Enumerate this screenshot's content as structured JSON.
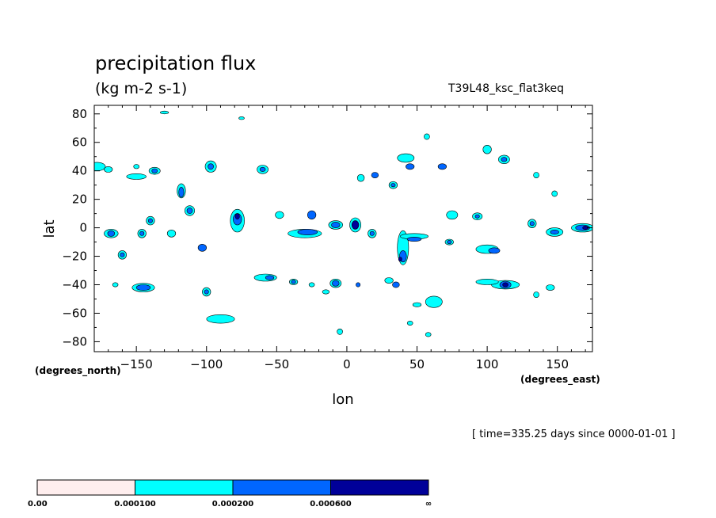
{
  "chart_data": {
    "type": "heatmap",
    "title": "precipitation flux",
    "units": "(kg m-2 s-1)",
    "run_name": "T39L48_ksc_flat3keq",
    "xlabel": "lon",
    "ylabel": "lat",
    "x_units": "(degrees_east)",
    "y_units": "(degrees_north)",
    "xlim": [
      -180,
      175
    ],
    "ylim": [
      -87,
      86
    ],
    "x_ticks": [
      -150,
      -100,
      -50,
      0,
      50,
      100,
      150
    ],
    "y_ticks": [
      80,
      60,
      40,
      20,
      0,
      -20,
      -40,
      -60,
      -80
    ],
    "x_tick_labels": [
      "−150",
      "−100",
      "−50",
      "0",
      "50",
      "100",
      "150"
    ],
    "y_tick_labels": [
      "80",
      "60",
      "40",
      "20",
      "0",
      "−20",
      "−40",
      "−60",
      "−80"
    ],
    "levels": [
      {
        "label": "0.00",
        "color": "#ffeeee"
      },
      {
        "label": "0.000100",
        "color": "#00ffff"
      },
      {
        "label": "0.000200",
        "color": "#0066ff"
      },
      {
        "label": "0.000600",
        "color": "#000099"
      },
      {
        "label": "∞"
      }
    ],
    "time_label": "[ time=335.25 days since 0000-01-01 ]",
    "blobs": [
      {
        "lon": -178,
        "lat": 43,
        "rx": 6,
        "ry": 3,
        "level": 1
      },
      {
        "lon": -170,
        "lat": 41,
        "rx": 3,
        "ry": 2,
        "level": 1
      },
      {
        "lon": -150,
        "lat": 36,
        "rx": 7,
        "ry": 2,
        "level": 1
      },
      {
        "lon": -137,
        "lat": 40,
        "rx": 4,
        "ry": 2.5,
        "level": 1
      },
      {
        "lon": -137,
        "lat": 40,
        "rx": 2,
        "ry": 1.5,
        "level": 2
      },
      {
        "lon": -118,
        "lat": 26,
        "rx": 3,
        "ry": 5,
        "level": 1
      },
      {
        "lon": -118,
        "lat": 25,
        "rx": 1.8,
        "ry": 3.5,
        "level": 2
      },
      {
        "lon": -112,
        "lat": 12,
        "rx": 3.5,
        "ry": 3.5,
        "level": 1
      },
      {
        "lon": -112,
        "lat": 12,
        "rx": 2,
        "ry": 2,
        "level": 2
      },
      {
        "lon": -97,
        "lat": 43,
        "rx": 4,
        "ry": 4,
        "level": 1
      },
      {
        "lon": -97,
        "lat": 43,
        "rx": 2,
        "ry": 2,
        "level": 2
      },
      {
        "lon": -78,
        "lat": 5,
        "rx": 5,
        "ry": 8,
        "level": 1
      },
      {
        "lon": -78,
        "lat": 6,
        "rx": 3,
        "ry": 4,
        "level": 2
      },
      {
        "lon": -78,
        "lat": 8,
        "rx": 1.5,
        "ry": 2,
        "level": 3
      },
      {
        "lon": -60,
        "lat": 41,
        "rx": 4,
        "ry": 3,
        "level": 1
      },
      {
        "lon": -60,
        "lat": 41,
        "rx": 2,
        "ry": 1.5,
        "level": 2
      },
      {
        "lon": -48,
        "lat": 9,
        "rx": 3,
        "ry": 2.5,
        "level": 1
      },
      {
        "lon": -30,
        "lat": -4,
        "rx": 12,
        "ry": 3,
        "level": 1
      },
      {
        "lon": -28,
        "lat": -3,
        "rx": 7,
        "ry": 2,
        "level": 2
      },
      {
        "lon": -25,
        "lat": 9,
        "rx": 3,
        "ry": 3,
        "level": 2
      },
      {
        "lon": -8,
        "lat": 2,
        "rx": 5,
        "ry": 3,
        "level": 1
      },
      {
        "lon": -8,
        "lat": 2,
        "rx": 3,
        "ry": 2,
        "level": 2
      },
      {
        "lon": 6,
        "lat": 2,
        "rx": 4,
        "ry": 5,
        "level": 1
      },
      {
        "lon": 6,
        "lat": 2,
        "rx": 2.5,
        "ry": 3,
        "level": 3
      },
      {
        "lon": 18,
        "lat": -4,
        "rx": 3,
        "ry": 3,
        "level": 1
      },
      {
        "lon": 18,
        "lat": -4,
        "rx": 1.5,
        "ry": 1.5,
        "level": 2
      },
      {
        "lon": 40,
        "lat": -14,
        "rx": 4,
        "ry": 12,
        "level": 1
      },
      {
        "lon": 40,
        "lat": -20,
        "rx": 2.5,
        "ry": 4,
        "level": 2
      },
      {
        "lon": 38,
        "lat": -22,
        "rx": 1.2,
        "ry": 1.5,
        "level": 3
      },
      {
        "lon": 42,
        "lat": 49,
        "rx": 6,
        "ry": 3,
        "level": 1
      },
      {
        "lon": 45,
        "lat": 43,
        "rx": 3,
        "ry": 2,
        "level": 2
      },
      {
        "lon": 33,
        "lat": 30,
        "rx": 3,
        "ry": 2.5,
        "level": 1
      },
      {
        "lon": 33,
        "lat": 30,
        "rx": 1.5,
        "ry": 1.2,
        "level": 2
      },
      {
        "lon": 10,
        "lat": 35,
        "rx": 2.5,
        "ry": 2.5,
        "level": 1
      },
      {
        "lon": 20,
        "lat": 37,
        "rx": 2.5,
        "ry": 2,
        "level": 2
      },
      {
        "lon": 68,
        "lat": 43,
        "rx": 3,
        "ry": 2,
        "level": 2
      },
      {
        "lon": 75,
        "lat": 9,
        "rx": 4,
        "ry": 3,
        "level": 1
      },
      {
        "lon": 93,
        "lat": 8,
        "rx": 3.5,
        "ry": 2.5,
        "level": 1
      },
      {
        "lon": 93,
        "lat": 8,
        "rx": 1.5,
        "ry": 1.2,
        "level": 2
      },
      {
        "lon": 100,
        "lat": -15,
        "rx": 8,
        "ry": 3,
        "level": 1
      },
      {
        "lon": 105,
        "lat": -16,
        "rx": 4,
        "ry": 2,
        "level": 2
      },
      {
        "lon": 113,
        "lat": -40,
        "rx": 10,
        "ry": 3,
        "level": 1
      },
      {
        "lon": 113,
        "lat": -40,
        "rx": 4,
        "ry": 2.5,
        "level": 2
      },
      {
        "lon": 113,
        "lat": -40,
        "rx": 2,
        "ry": 1.5,
        "level": 3
      },
      {
        "lon": 100,
        "lat": -38,
        "rx": 8,
        "ry": 2,
        "level": 1
      },
      {
        "lon": 112,
        "lat": 48,
        "rx": 4,
        "ry": 3,
        "level": 1
      },
      {
        "lon": 112,
        "lat": 48,
        "rx": 2,
        "ry": 1.5,
        "level": 2
      },
      {
        "lon": 100,
        "lat": 55,
        "rx": 3,
        "ry": 3,
        "level": 1
      },
      {
        "lon": 132,
        "lat": 3,
        "rx": 3,
        "ry": 3,
        "level": 1
      },
      {
        "lon": 132,
        "lat": 3,
        "rx": 1.5,
        "ry": 1.5,
        "level": 2
      },
      {
        "lon": 148,
        "lat": -3,
        "rx": 6,
        "ry": 3,
        "level": 1
      },
      {
        "lon": 148,
        "lat": -3,
        "rx": 3,
        "ry": 1.5,
        "level": 2
      },
      {
        "lon": 168,
        "lat": 0,
        "rx": 8,
        "ry": 3,
        "level": 1
      },
      {
        "lon": 168,
        "lat": 0,
        "rx": 5,
        "ry": 2,
        "level": 2
      },
      {
        "lon": 170,
        "lat": 0,
        "rx": 2,
        "ry": 1.2,
        "level": 3
      },
      {
        "lon": 145,
        "lat": -42,
        "rx": 3,
        "ry": 2,
        "level": 1
      },
      {
        "lon": -168,
        "lat": -4,
        "rx": 5,
        "ry": 3,
        "level": 1
      },
      {
        "lon": -168,
        "lat": -4,
        "rx": 2.5,
        "ry": 2,
        "level": 2
      },
      {
        "lon": -146,
        "lat": -4,
        "rx": 3,
        "ry": 3,
        "level": 1
      },
      {
        "lon": -146,
        "lat": -4,
        "rx": 1.5,
        "ry": 1.5,
        "level": 2
      },
      {
        "lon": -140,
        "lat": 5,
        "rx": 3,
        "ry": 3,
        "level": 1
      },
      {
        "lon": -140,
        "lat": 5,
        "rx": 1.5,
        "ry": 1.5,
        "level": 2
      },
      {
        "lon": -125,
        "lat": -4,
        "rx": 3,
        "ry": 2.5,
        "level": 1
      },
      {
        "lon": -160,
        "lat": -19,
        "rx": 3,
        "ry": 3,
        "level": 1
      },
      {
        "lon": -160,
        "lat": -19,
        "rx": 1.5,
        "ry": 1.5,
        "level": 2
      },
      {
        "lon": -103,
        "lat": -14,
        "rx": 3,
        "ry": 2.5,
        "level": 2
      },
      {
        "lon": -145,
        "lat": -42,
        "rx": 8,
        "ry": 3,
        "level": 1
      },
      {
        "lon": -145,
        "lat": -42,
        "rx": 5,
        "ry": 2,
        "level": 2
      },
      {
        "lon": -100,
        "lat": -45,
        "rx": 3,
        "ry": 3,
        "level": 1
      },
      {
        "lon": -100,
        "lat": -45,
        "rx": 1.5,
        "ry": 1.5,
        "level": 2
      },
      {
        "lon": -90,
        "lat": -64,
        "rx": 10,
        "ry": 3,
        "level": 1
      },
      {
        "lon": -58,
        "lat": -35,
        "rx": 8,
        "ry": 2.5,
        "level": 1
      },
      {
        "lon": -55,
        "lat": -35,
        "rx": 3,
        "ry": 1.5,
        "level": 2
      },
      {
        "lon": -38,
        "lat": -38,
        "rx": 3,
        "ry": 2,
        "level": 1
      },
      {
        "lon": -38,
        "lat": -38,
        "rx": 1.5,
        "ry": 1.2,
        "level": 2
      },
      {
        "lon": -8,
        "lat": -39,
        "rx": 4,
        "ry": 3,
        "level": 1
      },
      {
        "lon": -8,
        "lat": -39,
        "rx": 2.5,
        "ry": 2,
        "level": 2
      },
      {
        "lon": 30,
        "lat": -37,
        "rx": 3,
        "ry": 2,
        "level": 1
      },
      {
        "lon": 35,
        "lat": -40,
        "rx": 2.5,
        "ry": 2,
        "level": 2
      },
      {
        "lon": 62,
        "lat": -52,
        "rx": 6,
        "ry": 4,
        "level": 1
      },
      {
        "lon": 48,
        "lat": -6,
        "rx": 10,
        "ry": 2,
        "level": 1
      },
      {
        "lon": 48,
        "lat": -8,
        "rx": 5,
        "ry": 1.5,
        "level": 2
      },
      {
        "lon": 73,
        "lat": -10,
        "rx": 3,
        "ry": 2,
        "level": 1
      },
      {
        "lon": 73,
        "lat": -10,
        "rx": 1.5,
        "ry": 1.2,
        "level": 2
      },
      {
        "lon": 57,
        "lat": 64,
        "rx": 2,
        "ry": 2,
        "level": 1
      },
      {
        "lon": 135,
        "lat": 37,
        "rx": 2,
        "ry": 2,
        "level": 1
      },
      {
        "lon": 148,
        "lat": 24,
        "rx": 2,
        "ry": 2,
        "level": 1
      },
      {
        "lon": 135,
        "lat": -47,
        "rx": 2,
        "ry": 2,
        "level": 1
      },
      {
        "lon": -130,
        "lat": 81,
        "rx": 3,
        "ry": 1,
        "level": 1
      },
      {
        "lon": -75,
        "lat": 77,
        "rx": 2,
        "ry": 1,
        "level": 1
      },
      {
        "lon": -5,
        "lat": -73,
        "rx": 2,
        "ry": 2,
        "level": 1
      },
      {
        "lon": 58,
        "lat": -75,
        "rx": 2,
        "ry": 1.5,
        "level": 1
      },
      {
        "lon": 45,
        "lat": -67,
        "rx": 2,
        "ry": 1.5,
        "level": 1
      },
      {
        "lon": 50,
        "lat": -54,
        "rx": 3,
        "ry": 1.5,
        "level": 1
      },
      {
        "lon": -150,
        "lat": 43,
        "rx": 2,
        "ry": 1.5,
        "level": 1
      },
      {
        "lon": -165,
        "lat": -40,
        "rx": 2,
        "ry": 1.5,
        "level": 1
      },
      {
        "lon": -25,
        "lat": -40,
        "rx": 2,
        "ry": 1.5,
        "level": 1
      },
      {
        "lon": -15,
        "lat": -45,
        "rx": 2.5,
        "ry": 1.5,
        "level": 1
      },
      {
        "lon": 8,
        "lat": -40,
        "rx": 1.5,
        "ry": 1.5,
        "level": 2
      }
    ]
  }
}
